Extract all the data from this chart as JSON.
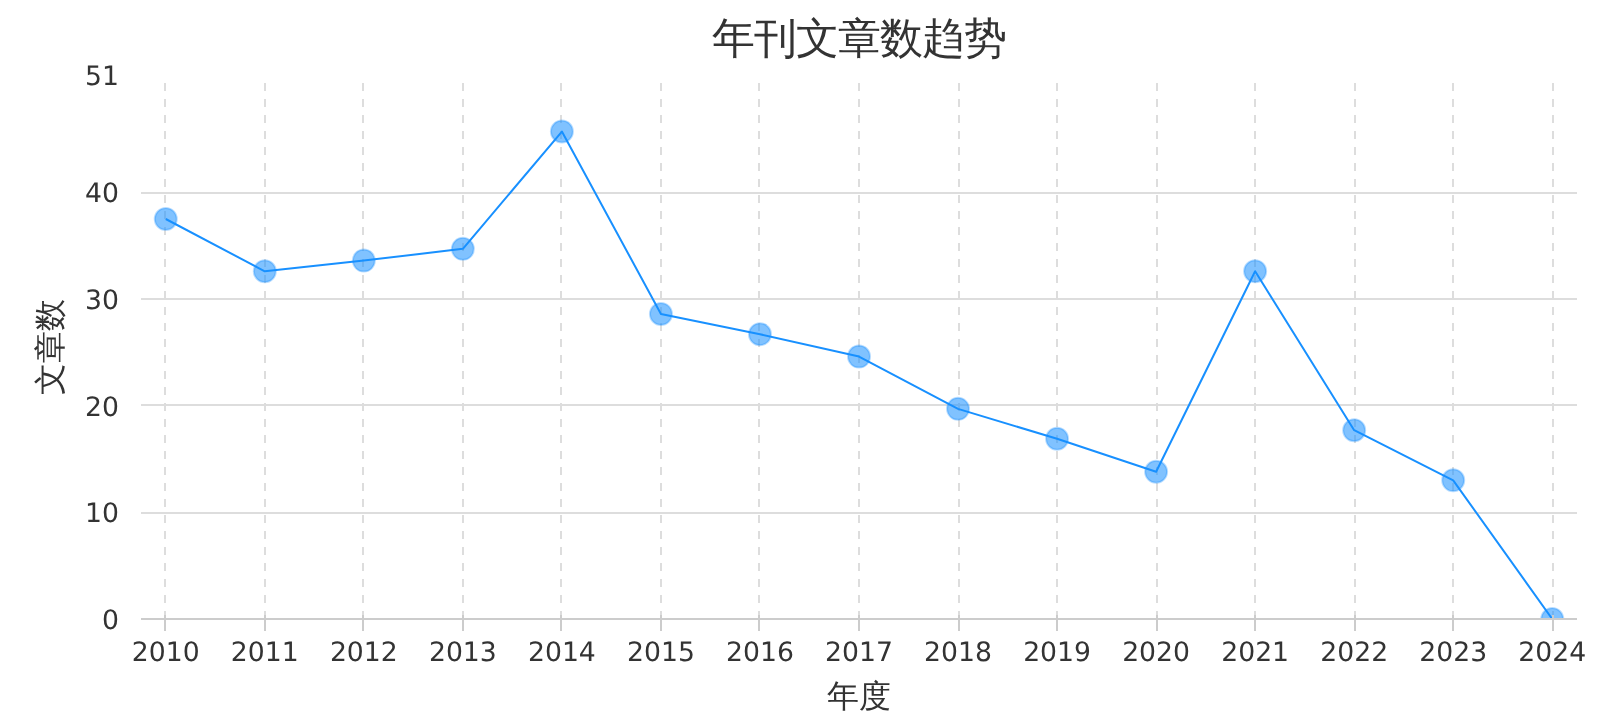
{
  "chart_data": {
    "type": "line",
    "title": "年刊文章数趋势",
    "xlabel": "年度",
    "ylabel": "文章数",
    "categories": [
      "2010",
      "2011",
      "2012",
      "2013",
      "2014",
      "2015",
      "2016",
      "2017",
      "2018",
      "2019",
      "2020",
      "2021",
      "2022",
      "2023",
      "2024"
    ],
    "series": [
      {
        "color": "#1890ff",
        "values": [
          37.5,
          32.6,
          33.6,
          34.7,
          45.7,
          28.6,
          26.7,
          24.6,
          19.7,
          16.9,
          13.8,
          32.6,
          17.7,
          13.0,
          0
        ]
      }
    ],
    "ylim": [
      0,
      51
    ],
    "yticks": [
      0,
      10,
      20,
      30,
      40,
      51
    ],
    "grid": true,
    "marker": "circle",
    "line_style": "solid"
  }
}
